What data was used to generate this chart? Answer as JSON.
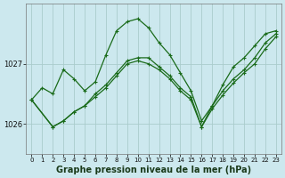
{
  "xlabel": "Graphe pression niveau de la mer (hPa)",
  "background_color": "#cce8ee",
  "grid_color": "#aacccc",
  "line_color": "#1a6b1a",
  "xlim": [
    -0.5,
    23.5
  ],
  "ylim": [
    1025.5,
    1028.0
  ],
  "xticks": [
    0,
    1,
    2,
    3,
    4,
    5,
    6,
    7,
    8,
    9,
    10,
    11,
    12,
    13,
    14,
    15,
    16,
    17,
    18,
    19,
    20,
    21,
    22,
    23
  ],
  "yticks": [
    1026,
    1027
  ],
  "ytick_labels": [
    "1026",
    "1027"
  ],
  "line1_x": [
    0,
    1,
    2,
    3,
    4,
    5,
    6,
    7,
    8,
    9,
    10,
    11,
    12,
    13,
    14,
    15,
    16,
    17,
    18,
    19,
    20,
    21,
    22,
    23
  ],
  "line1_y": [
    1026.4,
    1026.6,
    1026.5,
    1026.9,
    1026.75,
    1026.55,
    1026.7,
    1027.15,
    1027.55,
    1027.7,
    1027.75,
    1027.6,
    1027.35,
    1027.15,
    1026.85,
    1026.55,
    1026.05,
    1026.3,
    1026.65,
    1026.95,
    1027.1,
    1027.3,
    1027.5,
    1027.55
  ],
  "line2_x": [
    0,
    2,
    3,
    4,
    5,
    6,
    7,
    8,
    9,
    10,
    11,
    12,
    13,
    14,
    15,
    16,
    17,
    18,
    19,
    20,
    21,
    22,
    23
  ],
  "line2_y": [
    1026.4,
    1025.95,
    1026.05,
    1026.2,
    1026.3,
    1026.5,
    1026.65,
    1026.85,
    1027.05,
    1027.1,
    1027.1,
    1026.95,
    1026.8,
    1026.6,
    1026.45,
    1025.95,
    1026.3,
    1026.55,
    1026.75,
    1026.9,
    1027.1,
    1027.35,
    1027.5
  ],
  "line3_x": [
    0,
    2,
    3,
    4,
    5,
    6,
    7,
    8,
    9,
    10,
    11,
    12,
    13,
    14,
    15,
    16,
    17,
    18,
    19,
    20,
    21,
    22,
    23
  ],
  "line3_y": [
    1026.4,
    1025.95,
    1026.05,
    1026.2,
    1026.3,
    1026.45,
    1026.6,
    1026.8,
    1027.0,
    1027.05,
    1027.0,
    1026.9,
    1026.75,
    1026.55,
    1026.4,
    1025.95,
    1026.25,
    1026.48,
    1026.68,
    1026.85,
    1027.0,
    1027.25,
    1027.45
  ],
  "xlabel_fontsize": 7,
  "tick_fontsize": 6,
  "marker": "+",
  "markersize": 3,
  "linewidth": 0.9
}
